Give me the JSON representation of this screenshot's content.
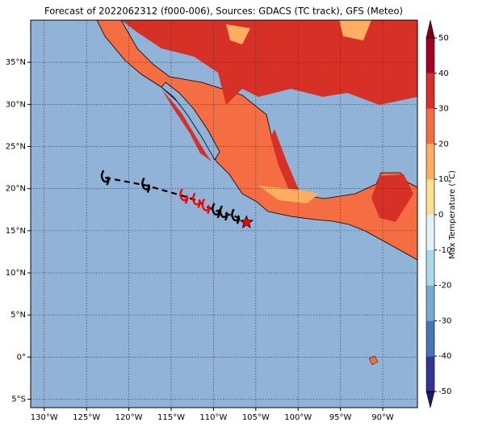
{
  "title": "Forecast of 2022062312 (f000-006), Sources: GDACS (TC track), GFS (Meteo)",
  "xlim": [
    -131.6,
    -85.9
  ],
  "ylim": [
    -6,
    40
  ],
  "xticks": [
    {
      "value": -130,
      "label": "130°W"
    },
    {
      "value": -125,
      "label": "125°W"
    },
    {
      "value": -120,
      "label": "120°W"
    },
    {
      "value": -115,
      "label": "115°W"
    },
    {
      "value": -110,
      "label": "110°W"
    },
    {
      "value": -105,
      "label": "105°W"
    },
    {
      "value": -100,
      "label": "100°W"
    },
    {
      "value": -95,
      "label": "95°W"
    },
    {
      "value": -90,
      "label": "90°W"
    }
  ],
  "yticks": [
    {
      "value": -5,
      "label": "5°S"
    },
    {
      "value": 0,
      "label": "0°"
    },
    {
      "value": 5,
      "label": "5°N"
    },
    {
      "value": 10,
      "label": "10°N"
    },
    {
      "value": 15,
      "label": "15°N"
    },
    {
      "value": 20,
      "label": "20°N"
    },
    {
      "value": 25,
      "label": "25°N"
    },
    {
      "value": 30,
      "label": "30°N"
    },
    {
      "value": 35,
      "label": "35°N"
    }
  ],
  "grid": true,
  "colorbar": {
    "label": "Max Temperature (°C)",
    "lim": [
      -50,
      50
    ],
    "ticks": [
      -50,
      -40,
      -30,
      -20,
      -10,
      0,
      10,
      20,
      30,
      40,
      50
    ],
    "colors": [
      "#313695",
      "#4575b4",
      "#74add1",
      "#abd9e9",
      "#e0f3f8",
      "#fee090",
      "#fdae61",
      "#f46d43",
      "#d73027",
      "#a50026"
    ],
    "under_color": "#1a1a6e",
    "over_color": "#7f0020"
  },
  "track": [
    {
      "lon": -122.8,
      "lat": 21.3,
      "color": "#000000",
      "marker": "storm"
    },
    {
      "lon": -118,
      "lat": 20.4,
      "color": "#000000",
      "marker": "storm"
    },
    {
      "lon": -113.5,
      "lat": 19.1,
      "color": "#ff0000",
      "marker": "storm"
    },
    {
      "lon": -112,
      "lat": 18.6,
      "color": "#ff0000",
      "marker": "storm"
    },
    {
      "lon": -110.9,
      "lat": 17.9,
      "color": "#ff0000",
      "marker": "storm"
    },
    {
      "lon": -109.7,
      "lat": 17.4,
      "color": "#000000",
      "marker": "storm"
    },
    {
      "lon": -108.8,
      "lat": 17.1,
      "color": "#000000",
      "marker": "storm"
    },
    {
      "lon": -107.4,
      "lat": 16.7,
      "color": "#000000",
      "marker": "storm"
    },
    {
      "lon": -106.1,
      "lat": 16.0,
      "color": "#ff0000",
      "marker": "star"
    }
  ]
}
